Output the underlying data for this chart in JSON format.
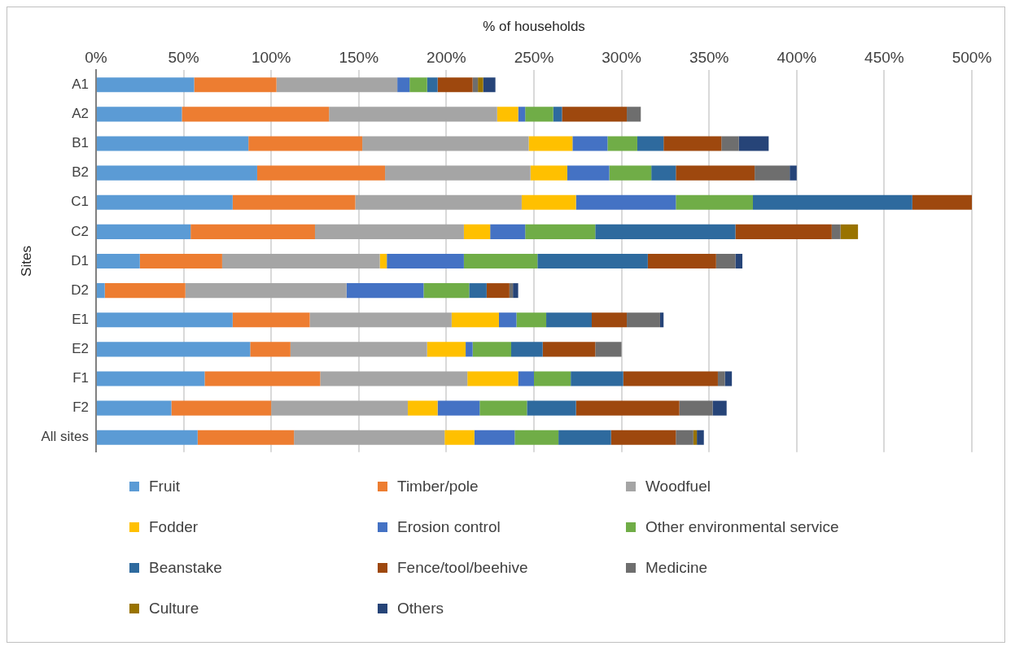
{
  "chart_data": {
    "type": "bar",
    "orientation": "horizontal",
    "stacked": true,
    "xlabel": "% of households",
    "ylabel": "Sites",
    "categories": [
      "A1",
      "A2",
      "B1",
      "B2",
      "C1",
      "C2",
      "D1",
      "D2",
      "E1",
      "E2",
      "F1",
      "F2",
      "All sites"
    ],
    "xlim": [
      0,
      500
    ],
    "xticks": [
      {
        "value": 0,
        "label": "0%"
      },
      {
        "value": 50,
        "label": "50%"
      },
      {
        "value": 100,
        "label": "100%"
      },
      {
        "value": 150,
        "label": "150%"
      },
      {
        "value": 200,
        "label": "200%"
      },
      {
        "value": 250,
        "label": "250%"
      },
      {
        "value": 300,
        "label": "300%"
      },
      {
        "value": 350,
        "label": "350%"
      },
      {
        "value": 400,
        "label": "400%"
      },
      {
        "value": 450,
        "label": "450%"
      },
      {
        "value": 500,
        "label": "500%"
      }
    ],
    "grid": "x",
    "legend": "bottom",
    "series": [
      {
        "name": "Fruit",
        "color": "#5b9bd5",
        "values": [
          56,
          49,
          87,
          92,
          78,
          54,
          25,
          5,
          78,
          88,
          62,
          43,
          58
        ]
      },
      {
        "name": "Timber/pole",
        "color": "#ed7d31",
        "values": [
          47,
          84,
          65,
          73,
          70,
          71,
          47,
          46,
          44,
          23,
          66,
          57,
          55
        ]
      },
      {
        "name": "Woodfuel",
        "color": "#a5a5a5",
        "values": [
          69,
          96,
          95,
          83,
          95,
          85,
          90,
          92,
          81,
          78,
          84,
          78,
          86
        ]
      },
      {
        "name": "Fodder",
        "color": "#ffc000",
        "values": [
          null,
          12,
          25,
          21,
          31,
          15,
          4,
          null,
          27,
          22,
          29,
          17,
          17
        ]
      },
      {
        "name": "Erosion control",
        "color": "#4472c4",
        "values": [
          7,
          4,
          20,
          24,
          57,
          20,
          44,
          44,
          10,
          4,
          9,
          24,
          23
        ]
      },
      {
        "name": "Other environmental service",
        "color": "#70ad47",
        "values": [
          10,
          16,
          17,
          24,
          44,
          40,
          42,
          26,
          17,
          22,
          21,
          27,
          25
        ]
      },
      {
        "name": "Beanstake",
        "color": "#2e6a9e",
        "values": [
          6,
          5,
          15,
          14,
          91,
          80,
          63,
          10,
          26,
          18,
          30,
          28,
          30
        ]
      },
      {
        "name": "Fence/tool/beehive",
        "color": "#9e480e",
        "values": [
          20,
          37,
          33,
          45,
          35,
          55,
          39,
          13,
          20,
          30,
          54,
          59,
          37
        ]
      },
      {
        "name": "Medicine",
        "color": "#6e6e6e",
        "values": [
          3,
          8,
          10,
          20,
          null,
          5,
          11,
          2,
          19,
          15,
          4,
          19,
          10
        ]
      },
      {
        "name": "Culture",
        "color": "#997300",
        "values": [
          3,
          null,
          null,
          null,
          null,
          10,
          null,
          null,
          null,
          null,
          null,
          null,
          2
        ]
      },
      {
        "name": "Others",
        "color": "#264478",
        "values": [
          7,
          null,
          17,
          4,
          null,
          null,
          4,
          3,
          2,
          null,
          4,
          8,
          4
        ]
      }
    ]
  }
}
